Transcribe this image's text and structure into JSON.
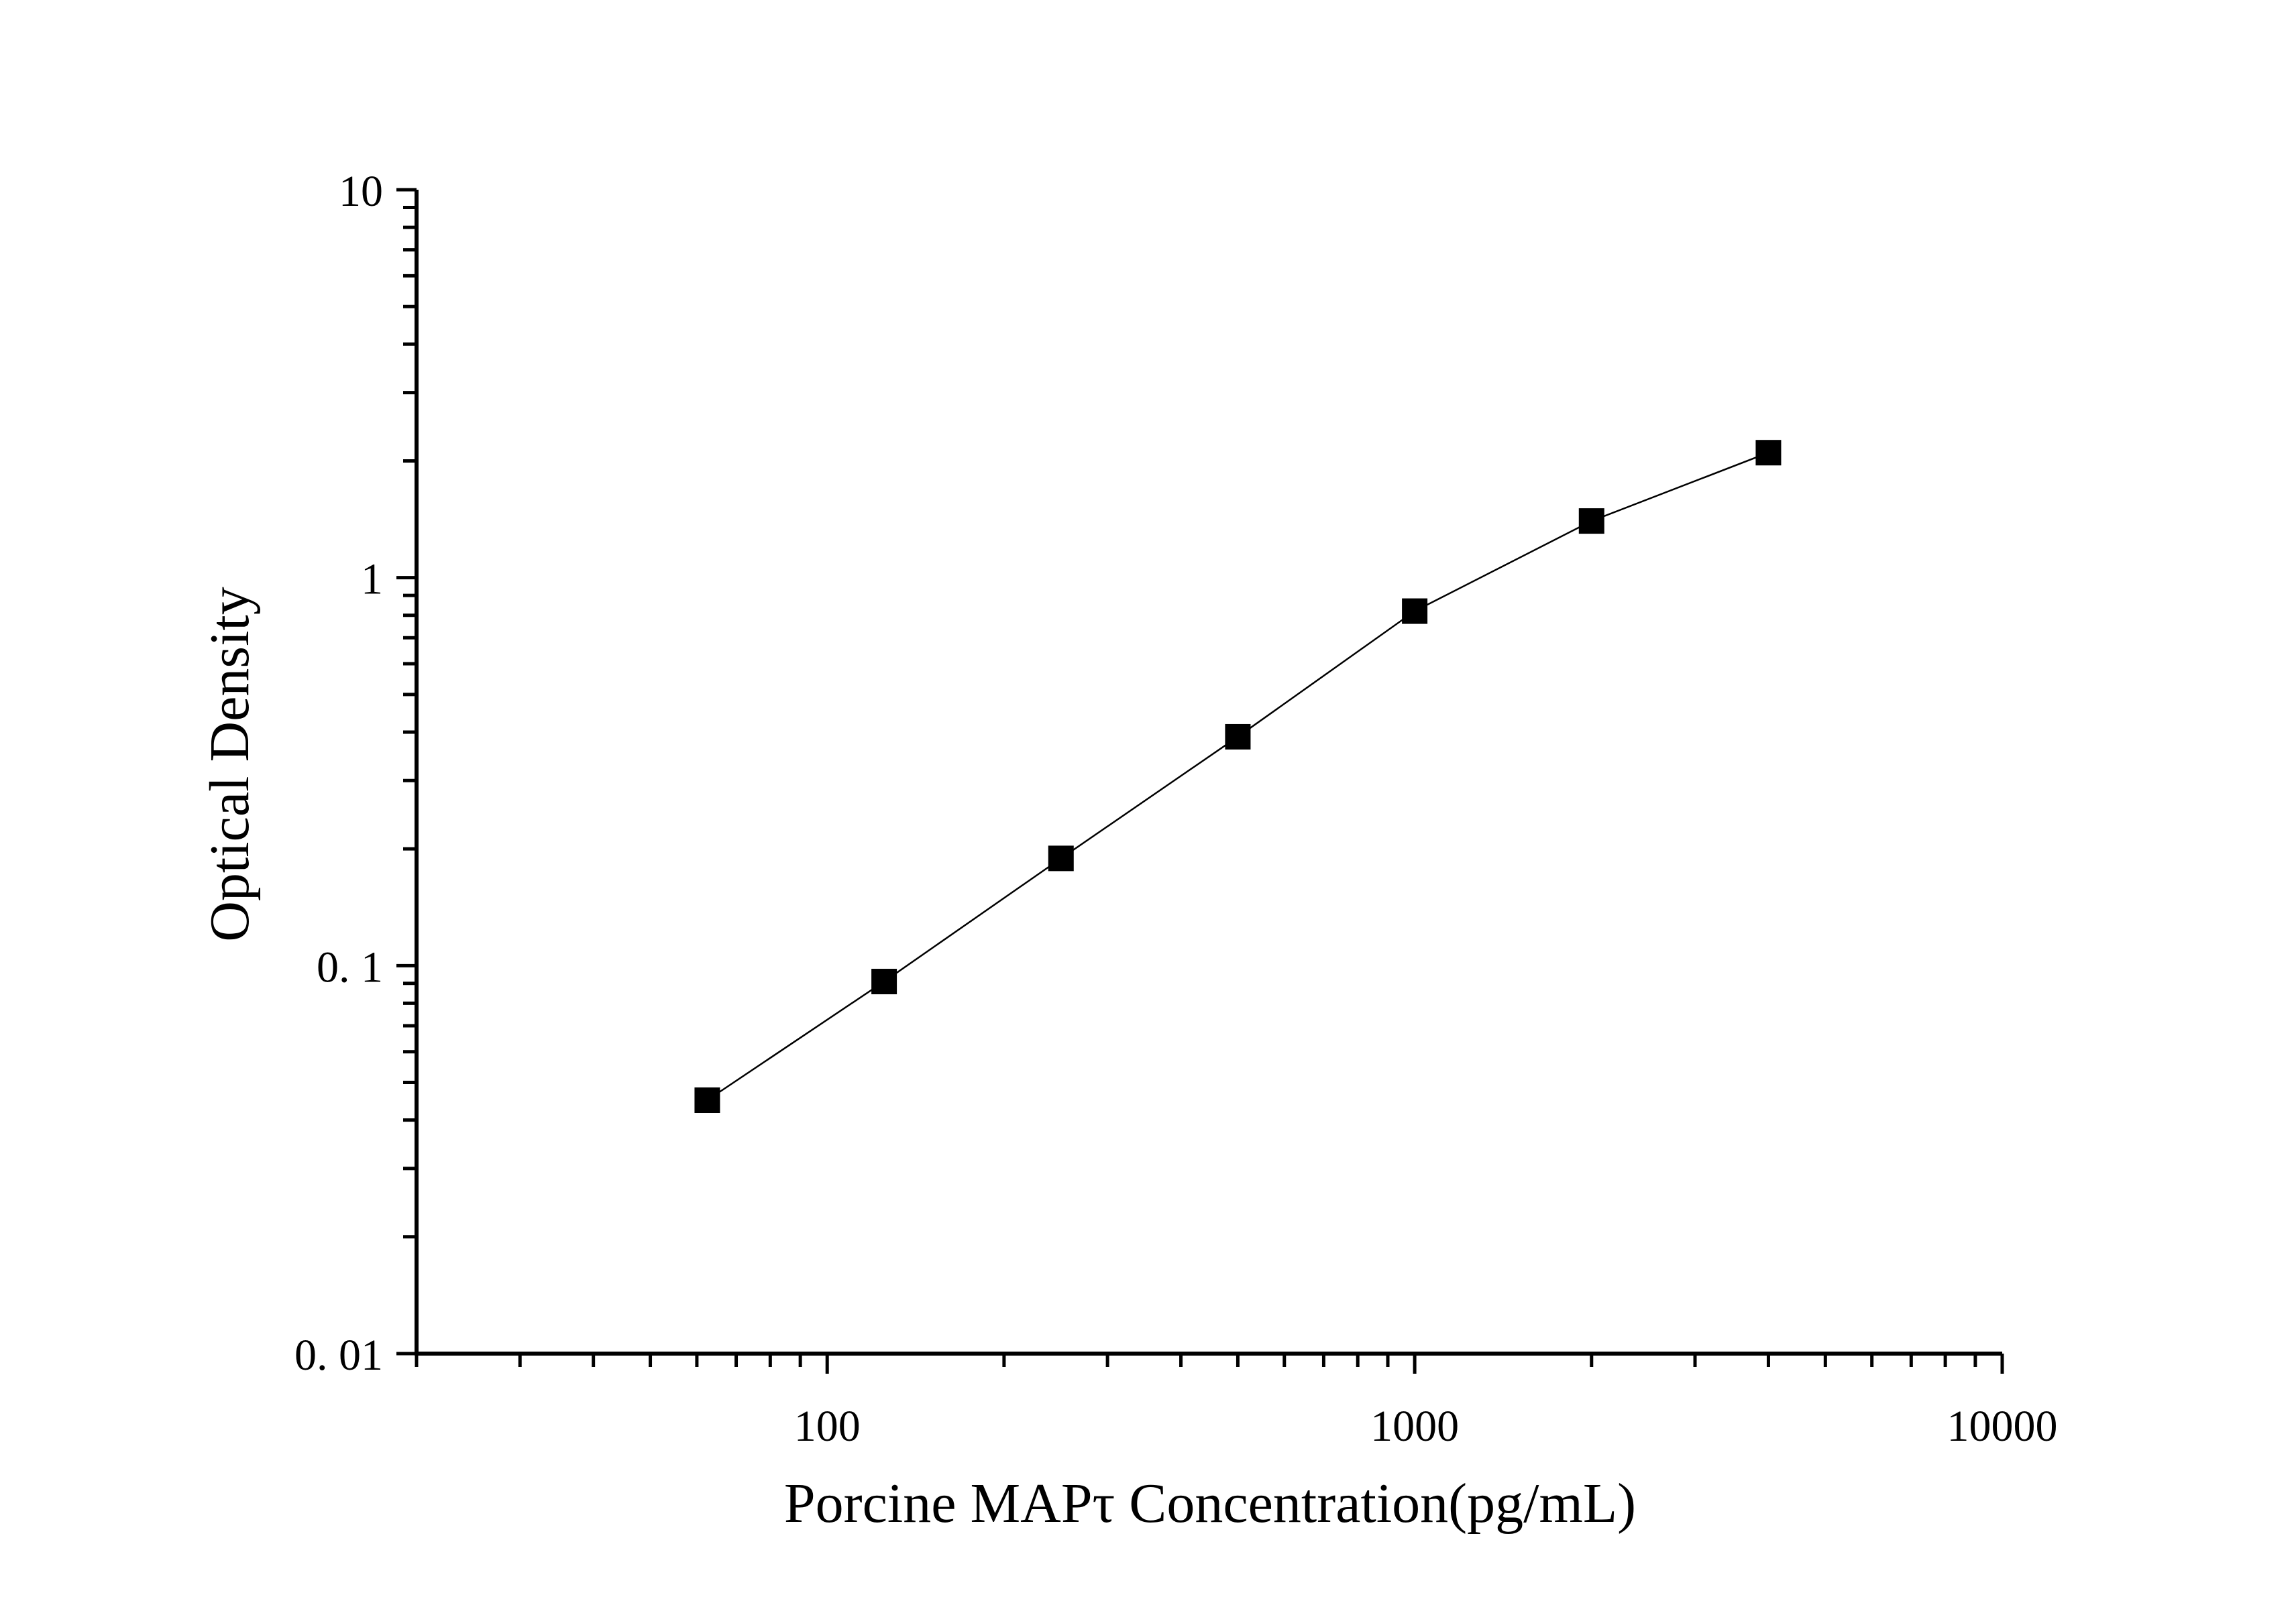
{
  "chart_data": {
    "type": "line",
    "title": "",
    "xlabel": "Porcine MAPτ Concentration(pg/mL)",
    "ylabel": "Optical Density",
    "xscale": "log",
    "yscale": "log",
    "xlim": [
      20,
      10000
    ],
    "ylim": [
      0.01,
      10
    ],
    "xticks": [
      100,
      1000,
      10000
    ],
    "xtick_labels": [
      "100",
      "1000",
      "10000"
    ],
    "yticks": [
      0.01,
      0.1,
      1,
      10
    ],
    "ytick_labels": [
      "0. 01",
      "0. 1",
      "1",
      "10"
    ],
    "grid": false,
    "legend": "none",
    "marker": "square",
    "colors": {
      "series": "#000000"
    },
    "series": [
      {
        "x": [
          62.5,
          125,
          250,
          500,
          1000,
          2000,
          4000
        ],
        "y": [
          0.045,
          0.091,
          0.189,
          0.389,
          0.82,
          1.4,
          2.1
        ]
      }
    ]
  }
}
